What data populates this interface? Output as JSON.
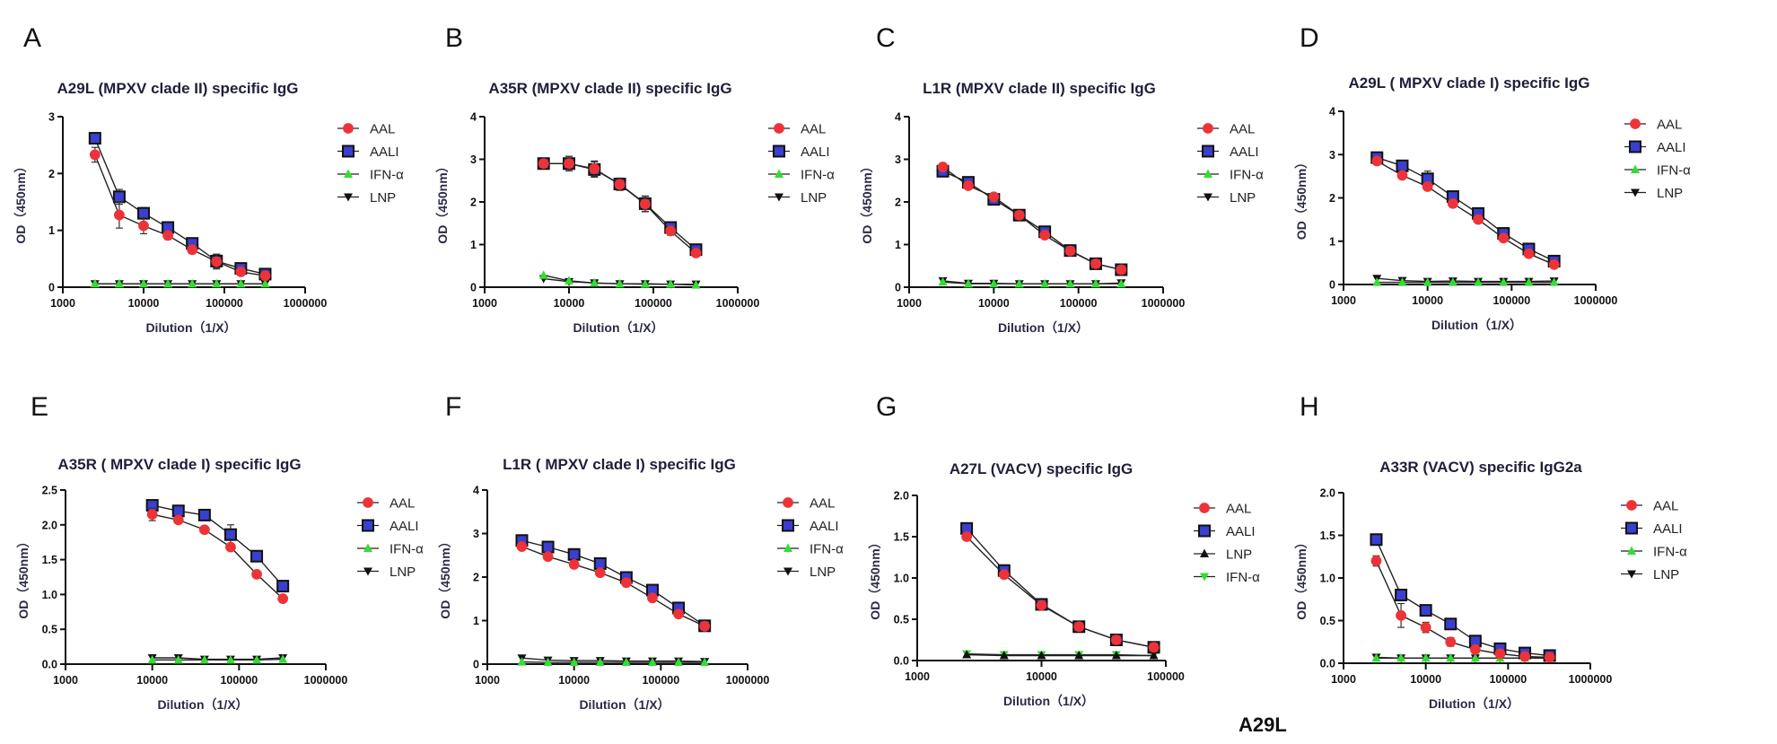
{
  "figure": {
    "footer_label": "A29L",
    "colors": {
      "AAL": "#ee3338",
      "AALI": "#3a3fcf",
      "IFN-α": "#33dd33",
      "LNP": "#111111",
      "text_title": "#1f1f3a"
    }
  },
  "chart_data": [
    {
      "panel": "A",
      "type": "line",
      "title": "A29L (MPXV clade II) specific IgG",
      "xlabel": "Dilution（1/X）",
      "ylabel": "OD（450nm）",
      "xscale": "log",
      "xlim": [
        1000,
        1000000
      ],
      "xticks": [
        "1000",
        "10000",
        "100000",
        "1000000"
      ],
      "ylim": [
        0,
        3
      ],
      "yticks": [
        "0",
        "1",
        "2",
        "3"
      ],
      "legend": "right",
      "x": [
        2500,
        5000,
        10000,
        20000,
        40000,
        80000,
        160000,
        320000
      ],
      "series": [
        {
          "name": "AAL",
          "marker": "circle",
          "values": [
            2.33,
            1.27,
            1.08,
            0.91,
            0.66,
            0.45,
            0.27,
            0.2
          ],
          "errors": [
            0.13,
            0.23,
            0.14,
            0.07,
            0.07,
            0.13,
            0.03,
            0.02
          ]
        },
        {
          "name": "AALI",
          "marker": "square",
          "values": [
            2.62,
            1.59,
            1.3,
            1.05,
            0.77,
            0.46,
            0.33,
            0.23
          ],
          "errors": [
            0.04,
            0.13,
            0.1,
            0.04,
            0.04,
            0.12,
            0.03,
            0.02
          ]
        },
        {
          "name": "IFN-α",
          "marker": "triangle-up",
          "values": [
            0.06,
            0.06,
            0.06,
            0.06,
            0.06,
            0.06,
            0.06,
            0.06
          ]
        },
        {
          "name": "LNP",
          "marker": "triangle-down",
          "values": [
            0.06,
            0.06,
            0.06,
            0.06,
            0.06,
            0.06,
            0.06,
            0.06
          ]
        }
      ]
    },
    {
      "panel": "B",
      "type": "line",
      "title": "A35R (MPXV clade II) specific IgG",
      "xlabel": "Dilution（1/X）",
      "ylabel": "OD（450nm）",
      "xscale": "log",
      "xlim": [
        1000,
        1000000
      ],
      "xticks": [
        "1000",
        "10000",
        "100000",
        "1000000"
      ],
      "ylim": [
        0,
        4
      ],
      "yticks": [
        "0",
        "1",
        "2",
        "3",
        "4"
      ],
      "legend": "right",
      "x": [
        5000,
        10000,
        20000,
        40000,
        80000,
        160000,
        320000
      ],
      "series": [
        {
          "name": "AAL",
          "marker": "circle",
          "values": [
            2.9,
            2.9,
            2.78,
            2.41,
            1.95,
            1.32,
            0.8
          ],
          "errors": [
            0.04,
            0.17,
            0.18,
            0.14,
            0.18,
            0.1,
            0.06
          ]
        },
        {
          "name": "AALI",
          "marker": "square",
          "values": [
            2.9,
            2.9,
            2.76,
            2.42,
            1.96,
            1.4,
            0.88
          ],
          "errors": [
            0.04,
            0.17,
            0.18,
            0.14,
            0.18,
            0.04,
            0.04
          ]
        },
        {
          "name": "IFN-α",
          "marker": "triangle-up",
          "values": [
            0.28,
            0.15,
            0.1,
            0.08,
            0.07,
            0.07,
            0.05
          ]
        },
        {
          "name": "LNP",
          "marker": "triangle-down",
          "values": [
            0.2,
            0.13,
            0.1,
            0.08,
            0.08,
            0.07,
            0.07
          ]
        }
      ]
    },
    {
      "panel": "C",
      "type": "line",
      "title": "L1R (MPXV clade II) specific IgG",
      "xlabel": "Dilution（1/X）",
      "ylabel": "OD（450nm）",
      "xscale": "log",
      "xlim": [
        1000,
        1000000
      ],
      "xticks": [
        "1000",
        "10000",
        "100000",
        "1000000"
      ],
      "ylim": [
        0,
        4
      ],
      "yticks": [
        "0",
        "1",
        "2",
        "3",
        "4"
      ],
      "legend": "right",
      "x": [
        2500,
        5000,
        10000,
        20000,
        40000,
        80000,
        160000,
        320000
      ],
      "series": [
        {
          "name": "AAL",
          "marker": "circle",
          "values": [
            2.82,
            2.38,
            2.12,
            1.69,
            1.22,
            0.85,
            0.55,
            0.41
          ],
          "errors": [
            0.03,
            0.03,
            0.03,
            0.03,
            0.03,
            0.03,
            0.03,
            0.03
          ]
        },
        {
          "name": "AALI",
          "marker": "square",
          "values": [
            2.72,
            2.46,
            2.06,
            1.69,
            1.3,
            0.86,
            0.55,
            0.41
          ],
          "errors": [
            0.03,
            0.03,
            0.03,
            0.03,
            0.03,
            0.03,
            0.03,
            0.03
          ]
        },
        {
          "name": "IFN-α",
          "marker": "triangle-up",
          "values": [
            0.12,
            0.08,
            0.08,
            0.08,
            0.08,
            0.08,
            0.08,
            0.08
          ]
        },
        {
          "name": "LNP",
          "marker": "triangle-down",
          "values": [
            0.15,
            0.09,
            0.09,
            0.08,
            0.08,
            0.08,
            0.08,
            0.1
          ]
        }
      ]
    },
    {
      "panel": "D",
      "type": "line",
      "title": "A29L ( MPXV clade I) specific IgG",
      "xlabel": "Dilution（1/X）",
      "ylabel": "OD（450nm）",
      "xscale": "log",
      "xlim": [
        1000,
        1000000
      ],
      "xticks": [
        "1000",
        "10000",
        "100000",
        "1000000"
      ],
      "ylim": [
        0,
        4
      ],
      "yticks": [
        "0",
        "1",
        "2",
        "3",
        "4"
      ],
      "legend": "right",
      "x": [
        2500,
        5000,
        10000,
        20000,
        40000,
        80000,
        160000,
        320000
      ],
      "series": [
        {
          "name": "AAL",
          "marker": "circle",
          "values": [
            2.85,
            2.52,
            2.26,
            1.87,
            1.5,
            1.07,
            0.71,
            0.46
          ],
          "errors": [
            0.08,
            0.04,
            0.04,
            0.04,
            0.04,
            0.04,
            0.04,
            0.03
          ]
        },
        {
          "name": "AALI",
          "marker": "square",
          "values": [
            2.93,
            2.74,
            2.44,
            2.03,
            1.64,
            1.18,
            0.82,
            0.54
          ],
          "errors": [
            0.04,
            0.12,
            0.18,
            0.04,
            0.04,
            0.04,
            0.04,
            0.03
          ]
        },
        {
          "name": "IFN-α",
          "marker": "triangle-up",
          "values": [
            0.05,
            0.05,
            0.05,
            0.05,
            0.05,
            0.05,
            0.05,
            0.05
          ]
        },
        {
          "name": "LNP",
          "marker": "triangle-down",
          "values": [
            0.14,
            0.09,
            0.07,
            0.08,
            0.07,
            0.07,
            0.07,
            0.08
          ]
        }
      ]
    },
    {
      "panel": "E",
      "type": "line",
      "title": "A35R ( MPXV clade I) specific IgG",
      "xlabel": "Dilution（1/X）",
      "ylabel": "OD（450nm）",
      "xscale": "log",
      "xlim": [
        1000,
        1000000
      ],
      "xticks": [
        "1000",
        "10000",
        "100000",
        "1000000"
      ],
      "ylim": [
        0,
        2.5
      ],
      "yticks": [
        "0.0",
        "0.5",
        "1.0",
        "1.5",
        "2.0",
        "2.5"
      ],
      "legend": "right",
      "x": [
        10000,
        20000,
        40000,
        80000,
        160000,
        320000
      ],
      "series": [
        {
          "name": "AAL",
          "marker": "circle",
          "values": [
            2.15,
            2.07,
            1.93,
            1.68,
            1.29,
            0.94
          ],
          "errors": [
            0.09,
            0.02,
            0.02,
            0.02,
            0.02,
            0.02
          ]
        },
        {
          "name": "AALI",
          "marker": "square",
          "values": [
            2.28,
            2.2,
            2.14,
            1.86,
            1.55,
            1.12
          ],
          "errors": [
            0.02,
            0.02,
            0.02,
            0.14,
            0.02,
            0.02
          ]
        },
        {
          "name": "IFN-α",
          "marker": "triangle-up",
          "values": [
            0.06,
            0.06,
            0.06,
            0.06,
            0.06,
            0.07
          ]
        },
        {
          "name": "LNP",
          "marker": "triangle-down",
          "values": [
            0.09,
            0.09,
            0.07,
            0.07,
            0.07,
            0.09
          ]
        }
      ]
    },
    {
      "panel": "F",
      "type": "line",
      "title": "L1R ( MPXV clade I) specific IgG",
      "xlabel": "Dilution（1/X）",
      "ylabel": "OD（450nm）",
      "xscale": "log",
      "xlim": [
        1000,
        1000000
      ],
      "xticks": [
        "1000",
        "10000",
        "100000",
        "1000000"
      ],
      "ylim": [
        0,
        4
      ],
      "yticks": [
        "0",
        "1",
        "2",
        "3",
        "4"
      ],
      "legend": "right",
      "x": [
        2500,
        5000,
        10000,
        20000,
        40000,
        80000,
        160000,
        320000
      ],
      "series": [
        {
          "name": "AAL",
          "marker": "circle",
          "values": [
            2.7,
            2.47,
            2.29,
            2.1,
            1.87,
            1.52,
            1.15,
            0.87
          ],
          "errors": [
            0.03,
            0.03,
            0.03,
            0.03,
            0.03,
            0.03,
            0.03,
            0.03
          ]
        },
        {
          "name": "AALI",
          "marker": "square",
          "values": [
            2.84,
            2.69,
            2.52,
            2.31,
            1.99,
            1.7,
            1.29,
            0.88
          ],
          "errors": [
            0.03,
            0.03,
            0.03,
            0.03,
            0.03,
            0.03,
            0.03,
            0.03
          ]
        },
        {
          "name": "IFN-α",
          "marker": "triangle-up",
          "values": [
            0.05,
            0.04,
            0.04,
            0.04,
            0.04,
            0.04,
            0.04,
            0.04
          ]
        },
        {
          "name": "LNP",
          "marker": "triangle-down",
          "values": [
            0.14,
            0.09,
            0.08,
            0.08,
            0.07,
            0.07,
            0.07,
            0.06
          ]
        }
      ]
    },
    {
      "panel": "G",
      "type": "line",
      "title": "A27L (VACV) specific IgG",
      "xlabel": "Dilution（1/X）",
      "ylabel": "OD（450nm）",
      "xscale": "log",
      "xlim": [
        1000,
        100000
      ],
      "xticks": [
        "1000",
        "10000",
        "100000"
      ],
      "ylim": [
        0,
        2.0
      ],
      "yticks": [
        "0.0",
        "0.5",
        "1.0",
        "1.5",
        "2.0"
      ],
      "legend": "right",
      "x": [
        2500,
        5000,
        10000,
        20000,
        40000,
        80000
      ],
      "series": [
        {
          "name": "AAL",
          "marker": "circle",
          "values": [
            1.5,
            1.04,
            0.67,
            0.41,
            0.25,
            0.16
          ],
          "errors": [
            0.01,
            0.01,
            0.01,
            0.01,
            0.01,
            0.01
          ]
        },
        {
          "name": "AALI",
          "marker": "square",
          "values": [
            1.6,
            1.09,
            0.68,
            0.41,
            0.25,
            0.16
          ],
          "errors": [
            0.01,
            0.01,
            0.01,
            0.01,
            0.01,
            0.01
          ]
        },
        {
          "name": "LNP",
          "marker": "triangle-up",
          "values": [
            0.07,
            0.06,
            0.06,
            0.06,
            0.06,
            0.06
          ]
        },
        {
          "name": "IFN-α",
          "marker": "triangle-down",
          "values": [
            0.08,
            0.07,
            0.07,
            0.07,
            0.07,
            0.06
          ]
        }
      ]
    },
    {
      "panel": "H",
      "type": "line",
      "title": "A33R (VACV) specific IgG2a",
      "xlabel": "Dilution（1/X）",
      "ylabel": "OD（450nm）",
      "xscale": "log",
      "xlim": [
        1000,
        1000000
      ],
      "xticks": [
        "1000",
        "10000",
        "100000",
        "1000000"
      ],
      "ylim": [
        0,
        2.0
      ],
      "yticks": [
        "0.0",
        "0.5",
        "1.0",
        "1.5",
        "2.0"
      ],
      "legend": "right",
      "x": [
        2500,
        5000,
        10000,
        20000,
        40000,
        80000,
        160000,
        320000
      ],
      "series": [
        {
          "name": "AAL",
          "marker": "circle",
          "values": [
            1.2,
            0.56,
            0.42,
            0.25,
            0.16,
            0.11,
            0.08,
            0.07
          ],
          "errors": [
            0.06,
            0.14,
            0.06,
            0.05,
            0.01,
            0.01,
            0.01,
            0.01
          ]
        },
        {
          "name": "AALI",
          "marker": "square",
          "values": [
            1.45,
            0.8,
            0.62,
            0.46,
            0.26,
            0.17,
            0.12,
            0.09
          ],
          "errors": [
            0.05,
            0.02,
            0.03,
            0.02,
            0.02,
            0.02,
            0.01,
            0.01
          ]
        },
        {
          "name": "IFN-α",
          "marker": "triangle-up",
          "values": [
            0.06,
            0.06,
            0.06,
            0.06,
            0.06,
            0.06,
            0.06,
            0.06
          ]
        },
        {
          "name": "LNP",
          "marker": "triangle-down",
          "values": [
            0.07,
            0.06,
            0.06,
            0.06,
            0.06,
            0.06,
            0.06,
            0.06
          ]
        }
      ]
    }
  ]
}
